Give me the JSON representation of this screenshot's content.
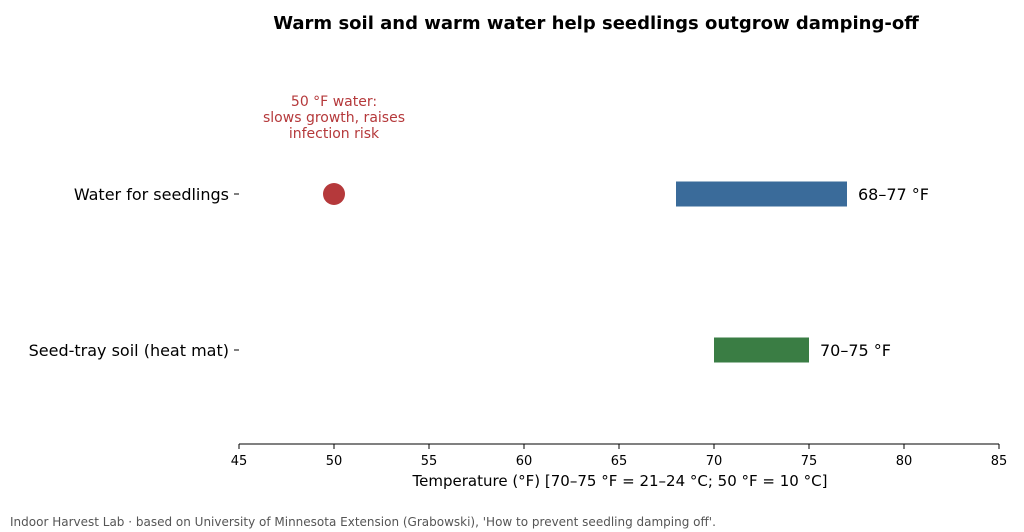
{
  "chart_data": {
    "type": "bar",
    "orientation": "horizontal",
    "title": "Warm soil and warm water help seedlings outgrow damping-off",
    "xlabel": "Temperature (°F)   [70–75 °F = 21–24 °C; 50 °F = 10 °C]",
    "ylabel": "",
    "xlim": [
      45,
      85
    ],
    "xticks": [
      45,
      50,
      55,
      60,
      65,
      70,
      75,
      80,
      85
    ],
    "grid": false,
    "legend": "none",
    "categories": [
      "Water for seedlings",
      "Seed-tray soil (heat mat)"
    ],
    "ranges": [
      {
        "category": "Water for seedlings",
        "start": 68,
        "end": 77,
        "label": "68–77 °F",
        "color": "#3a6b9a"
      },
      {
        "category": "Seed-tray soil (heat mat)",
        "start": 70,
        "end": 75,
        "label": "70–75 °F",
        "color": "#3a7d44"
      }
    ],
    "points": [
      {
        "category": "Water for seedlings",
        "x": 50,
        "color": "#b5393b"
      }
    ],
    "annotations": [
      {
        "lines": [
          "50 °F water:",
          "slows growth, raises",
          "infection risk"
        ],
        "x": 50,
        "category": "Water for seedlings",
        "color": "#b5393b"
      }
    ]
  },
  "footer": {
    "source": "Indoor Harvest Lab · based on University of Minnesota Extension (Grabowski), 'How to prevent seedling damping off'."
  }
}
